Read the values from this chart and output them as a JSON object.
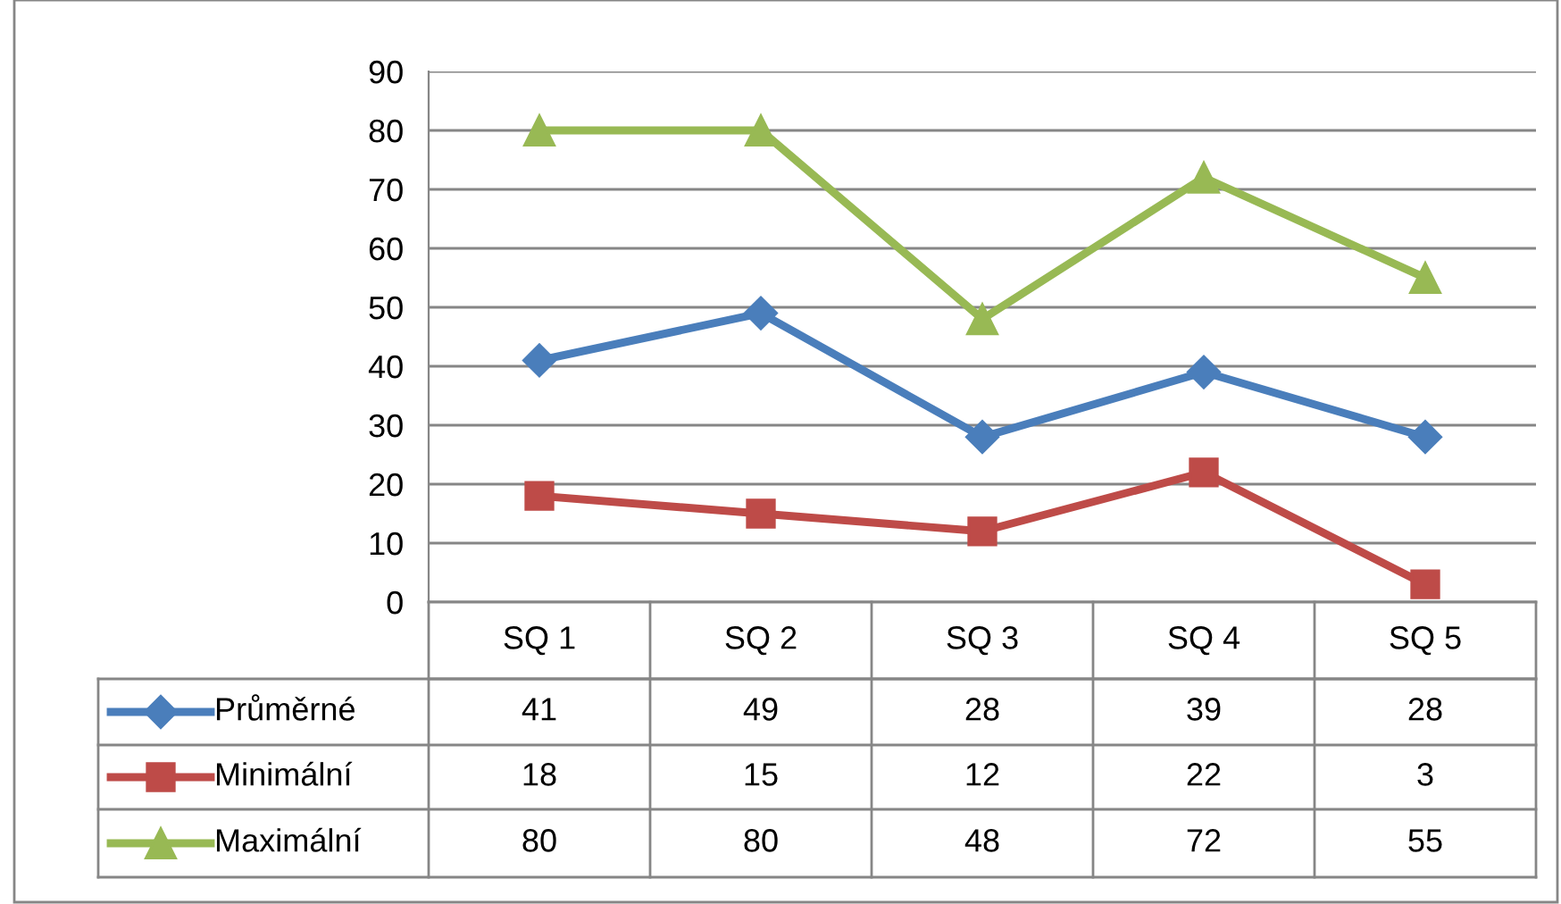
{
  "chart_data": {
    "type": "line",
    "categories": [
      "SQ 1",
      "SQ 2",
      "SQ 3",
      "SQ 4",
      "SQ 5"
    ],
    "series": [
      {
        "name": "Průměrné",
        "color": "#4a7ebb",
        "marker": "diamond",
        "values": [
          41,
          49,
          28,
          39,
          28
        ]
      },
      {
        "name": "Minimální",
        "color": "#be4b48",
        "marker": "square",
        "values": [
          18,
          15,
          12,
          22,
          3
        ]
      },
      {
        "name": "Maximální",
        "color": "#98b954",
        "marker": "triangle",
        "values": [
          80,
          80,
          48,
          72,
          55
        ]
      }
    ],
    "ylim": [
      0,
      90
    ],
    "yticks": [
      0,
      10,
      20,
      30,
      40,
      50,
      60,
      70,
      80,
      90
    ],
    "grid": "y",
    "data_labels": true,
    "legend": "bottom"
  }
}
